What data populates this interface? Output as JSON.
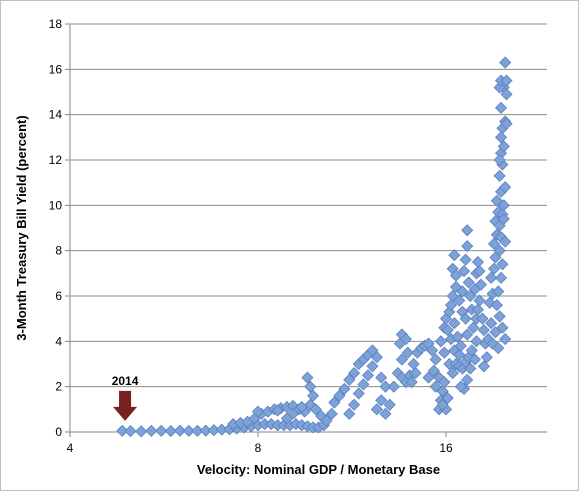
{
  "chart_data": {
    "type": "scatter",
    "xlabel": "Velocity: Nominal GDP / Monetary Base",
    "ylabel": "3-Month Treasury Bill Yield (percent)",
    "xlim": [
      4,
      20.5
    ],
    "ylim": [
      0,
      18
    ],
    "x_ticks": [
      4,
      8,
      16
    ],
    "x_tick_labels": [
      "4",
      "8",
      "16"
    ],
    "y_ticks": [
      0,
      2,
      4,
      6,
      8,
      10,
      12,
      14,
      16,
      18
    ],
    "y_tick_labels": [
      "0",
      "2",
      "4",
      "6",
      "8",
      "10",
      "12",
      "14",
      "16",
      "18"
    ],
    "grid": "horizontal",
    "marker": "diamond",
    "colors": {
      "marker_fill": "#7da2d8",
      "marker_edge": "#5a7fbf",
      "arrow": "#7b2020",
      "grid": "#8c8c8c"
    },
    "annotations": [
      {
        "text": "2014",
        "x": 4.9,
        "y": 0.05,
        "style": "down-arrow"
      }
    ],
    "series": [
      {
        "values": [
          [
            4.85,
            0.05
          ],
          [
            5.0,
            0.04
          ],
          [
            5.2,
            0.03
          ],
          [
            5.4,
            0.05
          ],
          [
            5.6,
            0.05
          ],
          [
            5.8,
            0.04
          ],
          [
            6.0,
            0.06
          ],
          [
            6.2,
            0.05
          ],
          [
            6.4,
            0.05
          ],
          [
            6.6,
            0.06
          ],
          [
            6.8,
            0.08
          ],
          [
            7.0,
            0.1
          ],
          [
            7.2,
            0.12
          ],
          [
            7.4,
            0.15
          ],
          [
            7.6,
            0.2
          ],
          [
            7.8,
            0.25
          ],
          [
            8.0,
            0.3
          ],
          [
            8.2,
            0.35
          ],
          [
            8.4,
            0.35
          ],
          [
            8.6,
            0.3
          ],
          [
            8.8,
            0.3
          ],
          [
            9.0,
            0.3
          ],
          [
            9.2,
            0.35
          ],
          [
            9.4,
            0.3
          ],
          [
            9.6,
            0.25
          ],
          [
            9.8,
            0.2
          ],
          [
            10.0,
            0.2
          ],
          [
            10.2,
            0.3
          ],
          [
            7.3,
            0.35
          ],
          [
            7.5,
            0.4
          ],
          [
            7.7,
            0.45
          ],
          [
            7.9,
            0.6
          ],
          [
            8.1,
            0.8
          ],
          [
            8.3,
            0.9
          ],
          [
            8.5,
            1.0
          ],
          [
            8.7,
            1.05
          ],
          [
            8.9,
            1.1
          ],
          [
            9.1,
            1.15
          ],
          [
            9.3,
            1.0
          ],
          [
            9.1,
            0.8
          ],
          [
            8.9,
            0.6
          ],
          [
            9.5,
            0.9
          ],
          [
            9.7,
            1.2
          ],
          [
            9.9,
            1.0
          ],
          [
            10.1,
            0.7
          ],
          [
            10.3,
            0.5
          ],
          [
            10.5,
            0.8
          ],
          [
            10.6,
            1.3
          ],
          [
            10.8,
            1.6
          ],
          [
            11.0,
            1.9
          ],
          [
            9.6,
            2.4
          ],
          [
            9.7,
            2.0
          ],
          [
            9.8,
            1.6
          ],
          [
            9.4,
            1.1
          ],
          [
            8.6,
            0.95
          ],
          [
            8.0,
            0.9
          ],
          [
            11.2,
            2.3
          ],
          [
            11.4,
            2.6
          ],
          [
            11.6,
            3.0
          ],
          [
            11.8,
            3.2
          ],
          [
            12.0,
            3.4
          ],
          [
            12.2,
            3.6
          ],
          [
            12.4,
            3.3
          ],
          [
            12.2,
            2.9
          ],
          [
            12.0,
            2.5
          ],
          [
            11.8,
            2.1
          ],
          [
            11.6,
            1.7
          ],
          [
            11.4,
            1.2
          ],
          [
            11.2,
            0.8
          ],
          [
            12.6,
            2.4
          ],
          [
            12.8,
            2.0
          ],
          [
            12.6,
            1.4
          ],
          [
            12.4,
            1.0
          ],
          [
            12.8,
            0.8
          ],
          [
            13.0,
            1.2
          ],
          [
            13.2,
            2.0
          ],
          [
            13.4,
            2.6
          ],
          [
            13.6,
            3.2
          ],
          [
            13.5,
            3.9
          ],
          [
            13.6,
            4.3
          ],
          [
            13.8,
            4.1
          ],
          [
            13.9,
            3.5
          ],
          [
            13.6,
            2.4
          ],
          [
            13.8,
            2.2
          ],
          [
            14.0,
            2.5
          ],
          [
            14.2,
            3.0
          ],
          [
            14.4,
            3.5
          ],
          [
            14.6,
            3.7
          ],
          [
            14.8,
            3.8
          ],
          [
            15.0,
            3.9
          ],
          [
            14.3,
            2.6
          ],
          [
            14.1,
            2.2
          ],
          [
            15.2,
            3.6
          ],
          [
            15.4,
            3.2
          ],
          [
            15.3,
            2.7
          ],
          [
            15.0,
            2.4
          ],
          [
            15.4,
            2.0
          ],
          [
            15.6,
            1.0
          ],
          [
            15.7,
            1.4
          ],
          [
            15.6,
            2.4
          ],
          [
            15.8,
            1.8
          ],
          [
            15.9,
            3.5
          ],
          [
            15.7,
            4.0
          ],
          [
            15.9,
            4.6
          ],
          [
            16.0,
            5.0
          ],
          [
            16.2,
            5.3
          ],
          [
            16.1,
            4.5
          ],
          [
            16.3,
            4.1
          ],
          [
            16.5,
            3.6
          ],
          [
            16.2,
            3.0
          ],
          [
            16.4,
            2.6
          ],
          [
            16.6,
            3.0
          ],
          [
            16.8,
            3.4
          ],
          [
            16.7,
            4.2
          ],
          [
            16.5,
            4.8
          ],
          [
            16.3,
            5.6
          ],
          [
            16.4,
            6.0
          ],
          [
            16.6,
            6.4
          ],
          [
            16.4,
            7.2
          ],
          [
            16.5,
            7.8
          ],
          [
            16.6,
            6.9
          ],
          [
            16.8,
            5.8
          ],
          [
            17.0,
            5.3
          ],
          [
            17.2,
            5.0
          ],
          [
            17.0,
            6.2
          ],
          [
            17.1,
            7.1
          ],
          [
            17.2,
            7.6
          ],
          [
            17.3,
            8.2
          ],
          [
            17.3,
            8.9
          ],
          [
            17.4,
            6.6
          ],
          [
            17.5,
            6.0
          ],
          [
            17.6,
            5.4
          ],
          [
            16.8,
            2.9
          ],
          [
            17.0,
            2.8
          ],
          [
            17.2,
            3.1
          ],
          [
            17.4,
            3.3
          ],
          [
            17.6,
            3.6
          ],
          [
            17.8,
            3.2
          ],
          [
            17.9,
            4.0
          ],
          [
            17.7,
            4.6
          ],
          [
            17.9,
            5.0
          ],
          [
            18.0,
            5.4
          ],
          [
            17.8,
            6.3
          ],
          [
            17.9,
            7.0
          ],
          [
            18.0,
            7.5
          ],
          [
            18.1,
            7.1
          ],
          [
            18.2,
            6.5
          ],
          [
            18.1,
            5.8
          ],
          [
            18.3,
            5.0
          ],
          [
            18.4,
            4.5
          ],
          [
            18.5,
            3.9
          ],
          [
            18.6,
            3.3
          ],
          [
            18.4,
            2.9
          ],
          [
            18.7,
            4.1
          ],
          [
            18.9,
            4.8
          ],
          [
            18.8,
            5.7
          ],
          [
            19.0,
            6.1
          ],
          [
            18.9,
            6.8
          ],
          [
            19.1,
            7.2
          ],
          [
            19.2,
            7.7
          ],
          [
            19.1,
            8.3
          ],
          [
            19.3,
            8.7
          ],
          [
            19.2,
            9.3
          ],
          [
            19.4,
            9.7
          ],
          [
            19.3,
            10.2
          ],
          [
            19.5,
            8.0
          ],
          [
            19.6,
            8.6
          ],
          [
            19.5,
            9.1
          ],
          [
            19.7,
            9.6
          ],
          [
            19.8,
            10.0
          ],
          [
            19.6,
            10.6
          ],
          [
            19.5,
            11.3
          ],
          [
            19.7,
            11.8
          ],
          [
            19.6,
            12.3
          ],
          [
            19.8,
            12.6
          ],
          [
            19.7,
            13.4
          ],
          [
            19.9,
            13.7
          ],
          [
            19.6,
            14.3
          ],
          [
            19.8,
            15.2
          ],
          [
            19.9,
            16.3
          ],
          [
            19.5,
            15.2
          ],
          [
            19.6,
            15.5
          ],
          [
            20.0,
            14.9
          ],
          [
            20.0,
            15.5
          ],
          [
            20.0,
            13.6
          ],
          [
            19.6,
            13.0
          ],
          [
            19.5,
            12.0
          ],
          [
            19.9,
            10.8
          ],
          [
            19.8,
            9.4
          ],
          [
            19.9,
            8.4
          ],
          [
            19.7,
            7.4
          ],
          [
            19.6,
            6.8
          ],
          [
            19.4,
            6.2
          ],
          [
            19.3,
            5.6
          ],
          [
            19.5,
            5.1
          ],
          [
            19.7,
            4.6
          ],
          [
            19.9,
            4.1
          ],
          [
            19.2,
            4.4
          ],
          [
            19.0,
            3.9
          ],
          [
            19.4,
            3.7
          ],
          [
            16.9,
            3.8
          ],
          [
            17.3,
            4.3
          ],
          [
            15.9,
            2.2
          ],
          [
            16.1,
            1.5
          ],
          [
            16.0,
            1.0
          ],
          [
            15.8,
            1.2
          ],
          [
            17.1,
            1.9
          ],
          [
            17.3,
            2.3
          ],
          [
            17.5,
            2.8
          ],
          [
            16.9,
            2.0
          ]
        ]
      }
    ]
  }
}
